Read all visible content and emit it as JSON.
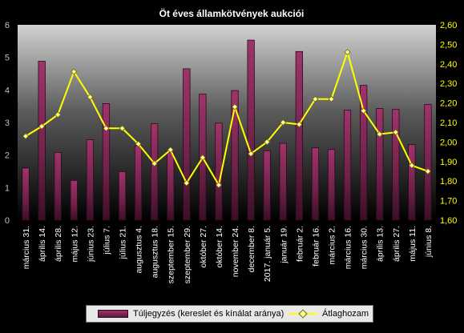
{
  "chart_data": {
    "type": "bar",
    "title": "Öt éves államkötvények aukciói",
    "categories": [
      "március 31.",
      "április 14.",
      "április 28.",
      "május 12.",
      "június 23.",
      "július 7.",
      "július 21.",
      "augusztus 4.",
      "augusztus 18.",
      "szeptember 15.",
      "szeptember 29.",
      "október 27.",
      "október 14.",
      "november 24.",
      "december 8.",
      "2017. január 5.",
      "január 19.",
      "február 2.",
      "február 16.",
      "március 2.",
      "március 16.",
      "március 30.",
      "április 13.",
      "április 27.",
      "május 11.",
      "június 8."
    ],
    "series": [
      {
        "name": "Túljegyzés (kereslet és kínálat aránya)",
        "type": "bar",
        "axis": "left",
        "color": "#8b2a5c",
        "values": [
          1.6,
          4.88,
          2.08,
          1.22,
          2.47,
          3.58,
          1.49,
          2.28,
          2.96,
          2.08,
          4.65,
          3.87,
          2.98,
          3.98,
          5.53,
          2.13,
          2.36,
          5.18,
          2.22,
          2.17,
          3.38,
          4.14,
          3.43,
          3.4,
          2.32,
          3.55
        ]
      },
      {
        "name": "Átlaghozam",
        "type": "line",
        "axis": "right",
        "color": "#ffff00",
        "values": [
          2.03,
          2.08,
          2.14,
          2.36,
          2.23,
          2.07,
          2.07,
          1.99,
          1.89,
          1.96,
          1.79,
          1.92,
          1.78,
          2.18,
          1.94,
          2.0,
          2.1,
          2.09,
          2.22,
          2.22,
          2.46,
          2.16,
          2.04,
          2.05,
          1.88,
          1.85
        ]
      }
    ],
    "ylim_left": [
      0,
      6
    ],
    "yticks_left": [
      "0",
      "1",
      "2",
      "3",
      "4",
      "5",
      "6"
    ],
    "ylim_right": [
      1.6,
      2.6
    ],
    "yticks_right": [
      "1,60",
      "1,70",
      "1,80",
      "1,90",
      "2,00",
      "2,10",
      "2,20",
      "2,30",
      "2,40",
      "2,50",
      "2,60"
    ],
    "grid": false,
    "legend_position": "bottom",
    "colors": {
      "background": "#000000",
      "plot_area_top": "#cccccc",
      "plot_area_bottom": "#000000",
      "bar_fill": "#8b2a5c",
      "line": "#ffff00",
      "marker_fill": "#ffffa0",
      "left_axis_text": "#c0c0c0",
      "right_axis_text": "#ffff00"
    }
  },
  "legend": {
    "bar_label": "Túljegyzés (kereslet és kínálat aránya)",
    "line_label": "Átlaghozam"
  }
}
